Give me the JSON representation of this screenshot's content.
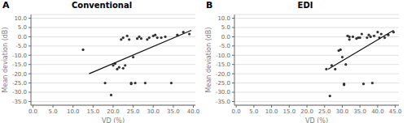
{
  "chart_data": [
    {
      "type": "scatter",
      "title": "Conventional",
      "annotations": [
        "A"
      ],
      "x_label": "VD (%)",
      "y_label": "Mean deviation (dB)",
      "grid": true,
      "series": [
        {
          "type": "scatter",
          "color": "#333333",
          "x": [
            12.5,
            18.0,
            19.5,
            20.0,
            20.5,
            21.0,
            21.5,
            22.0,
            22.5,
            22.5,
            23.0,
            23.5,
            24.0,
            24.5,
            24.5,
            25.0,
            25.5,
            26.0,
            26.5,
            27.0,
            28.0,
            28.5,
            29.0,
            30.0,
            30.5,
            31.0,
            32.0,
            33.0,
            34.5,
            36.0,
            37.5,
            39.0
          ],
          "values": [
            -7.0,
            -25.0,
            -31.5,
            -15.5,
            -14.5,
            -17.5,
            -16.5,
            -1.5,
            -0.5,
            -17.0,
            -15.5,
            0.5,
            -1.5,
            -25.0,
            -25.5,
            -11.0,
            -25.0,
            -1.0,
            0.0,
            -1.0,
            -25.0,
            -1.5,
            -0.5,
            0.5,
            1.0,
            -0.5,
            -0.5,
            0.0,
            -25.0,
            1.0,
            2.5,
            1.5
          ]
        },
        {
          "type": "line",
          "color": "#111111",
          "x": [
            14.0,
            39.5
          ],
          "values": [
            -20.0,
            3.5
          ]
        }
      ],
      "xlim": [
        -0.5,
        40.5
      ],
      "ylim": [
        -37.0,
        12.0
      ],
      "xticks": [
        {
          "value": 0,
          "label": "0.0"
        },
        {
          "value": 5,
          "label": "5.0"
        },
        {
          "value": 10,
          "label": "10.0"
        },
        {
          "value": 15,
          "label": "15.0"
        },
        {
          "value": 20,
          "label": "20.0"
        },
        {
          "value": 25,
          "label": "25.0"
        },
        {
          "value": 30,
          "label": "30.0"
        },
        {
          "value": 35,
          "label": "35.0"
        },
        {
          "value": 40,
          "label": "40.0"
        }
      ],
      "yticks": [
        {
          "value": 10,
          "label": "10.0"
        },
        {
          "value": 5,
          "label": "5.0"
        },
        {
          "value": 0,
          "label": "0.0"
        },
        {
          "value": -5,
          "label": "-5.0"
        },
        {
          "value": -10,
          "label": "-10.0"
        },
        {
          "value": -15,
          "label": "-15.0"
        },
        {
          "value": -20,
          "label": "-20.0"
        },
        {
          "value": -25,
          "label": "-25.0"
        },
        {
          "value": -30,
          "label": "-30.0"
        },
        {
          "value": -35,
          "label": "-35.0"
        }
      ]
    },
    {
      "type": "scatter",
      "title": "EDI",
      "annotations": [
        "B"
      ],
      "x_label": "VD (%)",
      "y_label": "Mean deviation (dB)",
      "grid": true,
      "series": [
        {
          "type": "scatter",
          "color": "#333333",
          "x": [
            25.5,
            26.5,
            27.0,
            28.0,
            29.0,
            29.5,
            30.0,
            30.5,
            30.5,
            31.0,
            31.5,
            32.0,
            32.0,
            33.0,
            34.0,
            34.5,
            35.0,
            35.5,
            36.0,
            37.0,
            37.5,
            38.0,
            38.5,
            39.0,
            40.0,
            40.5,
            41.0,
            42.0,
            43.0,
            44.5
          ],
          "values": [
            -17.5,
            -32.0,
            -15.5,
            -17.5,
            -7.5,
            -7.0,
            -11.0,
            -25.5,
            -26.0,
            -15.0,
            0.5,
            -1.5,
            0.0,
            0.0,
            -1.0,
            -0.5,
            -0.5,
            1.5,
            -25.5,
            -0.5,
            1.0,
            0.0,
            -25.0,
            0.5,
            2.5,
            -0.5,
            1.5,
            -0.5,
            1.0,
            2.5
          ]
        },
        {
          "type": "line",
          "color": "#111111",
          "x": [
            26.0,
            44.5
          ],
          "values": [
            -17.5,
            3.5
          ]
        }
      ],
      "xlim": [
        -0.5,
        46.0
      ],
      "ylim": [
        -37.0,
        12.0
      ],
      "xticks": [
        {
          "value": 0,
          "label": "0.0"
        },
        {
          "value": 5,
          "label": "5.0"
        },
        {
          "value": 10,
          "label": "10.0"
        },
        {
          "value": 15,
          "label": "15.0"
        },
        {
          "value": 20,
          "label": "20.0"
        },
        {
          "value": 25,
          "label": "25.0"
        },
        {
          "value": 30,
          "label": "30.0"
        },
        {
          "value": 35,
          "label": "35.0"
        },
        {
          "value": 40,
          "label": "40.0"
        },
        {
          "value": 45,
          "label": "45.0"
        }
      ],
      "yticks": [
        {
          "value": 10,
          "label": "10.0"
        },
        {
          "value": 5,
          "label": "5.0"
        },
        {
          "value": 0,
          "label": "0.0"
        },
        {
          "value": -5,
          "label": "-5.0"
        },
        {
          "value": -10,
          "label": "-10.0"
        },
        {
          "value": -15,
          "label": "-15.0"
        },
        {
          "value": -20,
          "label": "-20.0"
        },
        {
          "value": -25,
          "label": "-25.0"
        },
        {
          "value": -30,
          "label": "-30.0"
        },
        {
          "value": -35,
          "label": "-35.0"
        }
      ]
    }
  ]
}
